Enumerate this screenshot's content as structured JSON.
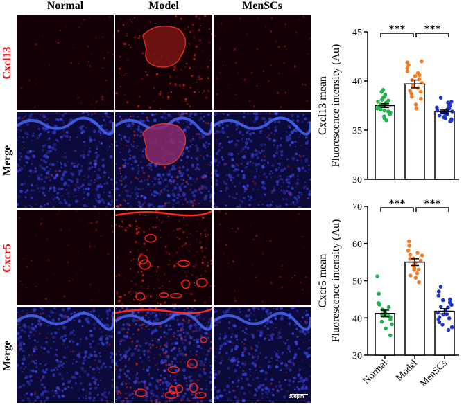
{
  "figure": {
    "column_labels": [
      "Normal",
      "Model",
      "MenSCs"
    ],
    "row_labels": [
      {
        "text": "Cxcl13",
        "color": "#e8151a"
      },
      {
        "text": "Merge",
        "color": "#000000"
      },
      {
        "text": "Cxcr5",
        "color": "#e8151a"
      },
      {
        "text": "Merge",
        "color": "#000000"
      }
    ],
    "scale_bar": "100μm",
    "stain_colors": {
      "red": "#d8201a",
      "blue": "#2340d8",
      "background": "#120006"
    }
  },
  "chart_data": [
    {
      "type": "bar",
      "categories": [
        "Normal",
        "Model",
        "MenSCs"
      ],
      "values": [
        37.5,
        39.7,
        36.9
      ],
      "sem": [
        0.2,
        0.4,
        0.15
      ],
      "ylabel_line1": "Cxcl13 mean",
      "ylabel_line2": "Fluorescence intensity (Au)",
      "ylim": [
        30,
        45
      ],
      "yticks": [
        30,
        35,
        40,
        45
      ],
      "colors": [
        "#22b14c",
        "#f47c20",
        "#1f35c8"
      ],
      "significance": [
        {
          "pair": [
            "Normal",
            "Model"
          ],
          "label": "***"
        },
        {
          "pair": [
            "Model",
            "MenSCs"
          ],
          "label": "***"
        }
      ],
      "points": [
        [
          37.2,
          36.4,
          38.1,
          37.9,
          36.8,
          37.5,
          38.6,
          37.0,
          36.2,
          38.9,
          37.6,
          36.9,
          37.3,
          38.3,
          37.8,
          36.6,
          39.1,
          37.4,
          37.1,
          38.0,
          36.0,
          37.7,
          38.4,
          37.5
        ],
        [
          38.4,
          40.2,
          41.3,
          39.0,
          37.6,
          40.8,
          41.9,
          39.5,
          38.9,
          40.5,
          41.6,
          37.2,
          39.8,
          40.1,
          38.2,
          41.0,
          39.3,
          40.6,
          42.0,
          38.7
        ],
        [
          36.5,
          37.2,
          36.0,
          37.8,
          36.9,
          37.4,
          36.3,
          38.3,
          36.7,
          37.0,
          36.1,
          37.6,
          36.8,
          35.9,
          37.3,
          36.6,
          37.9,
          36.2,
          37.1,
          36.4,
          37.5,
          36.8
        ]
      ]
    },
    {
      "type": "bar",
      "categories": [
        "Normal",
        "Model",
        "MenSCs"
      ],
      "values": [
        41.2,
        55.0,
        41.8
      ],
      "sem": [
        0.9,
        0.9,
        0.7
      ],
      "ylabel_line1": "Cxcr5 mean",
      "ylabel_line2": "Fluorescence intensity (Au)",
      "ylim": [
        30,
        70
      ],
      "yticks": [
        30,
        40,
        50,
        60,
        70
      ],
      "colors": [
        "#22b14c",
        "#f47c20",
        "#1f35c8"
      ],
      "significance": [
        {
          "pair": [
            "Normal",
            "Model"
          ],
          "label": "***"
        },
        {
          "pair": [
            "Model",
            "MenSCs"
          ],
          "label": "***"
        }
      ],
      "points": [
        [
          51.2,
          46.5,
          44.0,
          42.3,
          41.5,
          40.8,
          42.9,
          39.6,
          40.2,
          38.3,
          43.6,
          41.0,
          39.0,
          37.2,
          35.3,
          41.8,
          40.5
        ],
        [
          60.6,
          59.4,
          58.1,
          57.5,
          56.8,
          56.0,
          55.4,
          54.8,
          54.2,
          53.5,
          52.9,
          52.0,
          51.4,
          50.8,
          55.9,
          57.0,
          53.0,
          49.6
        ],
        [
          48.4,
          47.1,
          46.0,
          45.0,
          44.2,
          43.5,
          42.8,
          42.1,
          41.4,
          40.9,
          40.2,
          39.6,
          38.9,
          38.2,
          37.5,
          43.0,
          41.0,
          39.9,
          44.8,
          36.8
        ]
      ]
    }
  ],
  "x_tick_labels": [
    "Normal",
    "Model",
    "MenSCs"
  ]
}
